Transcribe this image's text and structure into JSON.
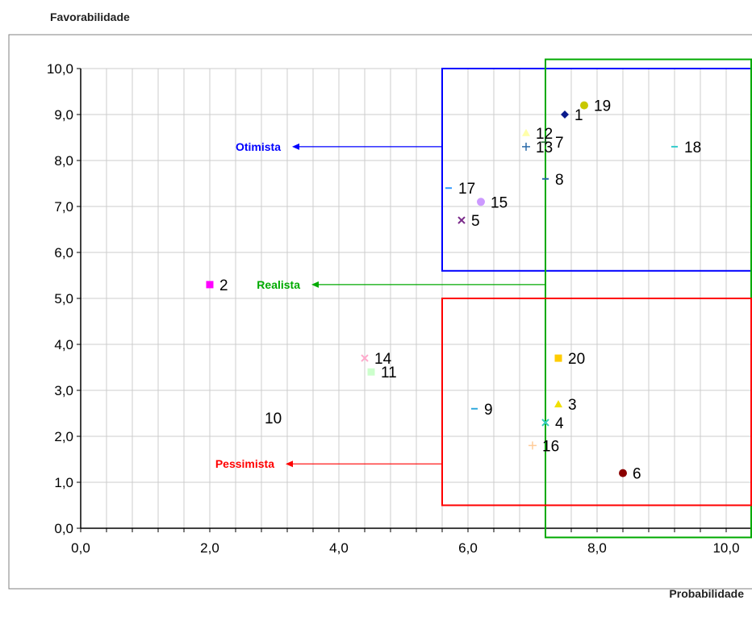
{
  "chart_data": {
    "type": "scatter",
    "ylabel": "Favorabilidade",
    "xlabel": "Probabilidade",
    "xlim": [
      0,
      10
    ],
    "ylim": [
      0,
      10
    ],
    "x_ticks": [
      "0,0",
      "2,0",
      "4,0",
      "6,0",
      "8,0",
      "10,0"
    ],
    "y_ticks": [
      "0,0",
      "1,0",
      "2,0",
      "3,0",
      "4,0",
      "5,0",
      "6,0",
      "7,0",
      "8,0",
      "9,0",
      "10,0"
    ],
    "grid": true,
    "points": [
      {
        "label": "1",
        "x": 7.5,
        "y": 9.0,
        "marker": "diamond",
        "color": "#0a1a8c"
      },
      {
        "label": "2",
        "x": 2.0,
        "y": 5.3,
        "marker": "square",
        "color": "#ff00ff"
      },
      {
        "label": "3",
        "x": 7.4,
        "y": 2.7,
        "marker": "triangle",
        "color": "#f0e000"
      },
      {
        "label": "4",
        "x": 7.2,
        "y": 2.3,
        "marker": "x",
        "color": "#33ccbb"
      },
      {
        "label": "5",
        "x": 5.9,
        "y": 6.7,
        "marker": "x",
        "color": "#7a2a8a"
      },
      {
        "label": "6",
        "x": 8.4,
        "y": 1.2,
        "marker": "circle",
        "color": "#8b0000"
      },
      {
        "label": "7",
        "x": 7.2,
        "y": 8.4,
        "marker": "plus",
        "color": "#1a6a2a"
      },
      {
        "label": "8",
        "x": 7.2,
        "y": 7.6,
        "marker": "dash",
        "color": "#2a6aa8"
      },
      {
        "label": "9",
        "x": 6.1,
        "y": 2.6,
        "marker": "dash",
        "color": "#33aadd"
      },
      {
        "label": "10",
        "x": 2.7,
        "y": 2.4,
        "marker": "none",
        "color": "#ffffff"
      },
      {
        "label": "11",
        "x": 4.5,
        "y": 3.4,
        "marker": "square",
        "color": "#ccffcc"
      },
      {
        "label": "12",
        "x": 6.9,
        "y": 8.6,
        "marker": "triangle",
        "color": "#ffffaa"
      },
      {
        "label": "13",
        "x": 6.9,
        "y": 8.3,
        "marker": "plus",
        "color": "#2a6aa8"
      },
      {
        "label": "14",
        "x": 4.4,
        "y": 3.7,
        "marker": "x",
        "color": "#ffaacc"
      },
      {
        "label": "15",
        "x": 6.2,
        "y": 7.1,
        "marker": "circle",
        "color": "#cc99ff"
      },
      {
        "label": "16",
        "x": 7.0,
        "y": 1.8,
        "marker": "plus",
        "color": "#ffcc99"
      },
      {
        "label": "17",
        "x": 5.7,
        "y": 7.4,
        "marker": "dash",
        "color": "#3399ff"
      },
      {
        "label": "18",
        "x": 9.2,
        "y": 8.3,
        "marker": "dash",
        "color": "#33cccc"
      },
      {
        "label": "19",
        "x": 7.8,
        "y": 9.2,
        "marker": "circle",
        "color": "#c8c800"
      },
      {
        "label": "20",
        "x": 7.4,
        "y": 3.7,
        "marker": "square",
        "color": "#ffcc00"
      }
    ],
    "regions": [
      {
        "name": "Otimista",
        "color": "#0000ff",
        "x_range": [
          5.6,
          10.4
        ],
        "y_range": [
          5.6,
          10.0
        ],
        "label_anchor": [
          3.2,
          8.3
        ]
      },
      {
        "name": "Realista",
        "color": "#00aa00",
        "x_range": [
          7.2,
          10.4
        ],
        "y_range": [
          -0.2,
          10.2
        ],
        "label_anchor": [
          3.5,
          5.3
        ]
      },
      {
        "name": "Pessimista",
        "color": "#ff0000",
        "x_range": [
          5.6,
          10.4
        ],
        "y_range": [
          0.5,
          5.0
        ],
        "label_anchor": [
          3.1,
          1.4
        ]
      }
    ]
  },
  "colors": {
    "otimista": "#0000ff",
    "realista": "#00aa00",
    "pessimista": "#ff0000",
    "grid": "#cccccc",
    "axis": "#000000"
  }
}
